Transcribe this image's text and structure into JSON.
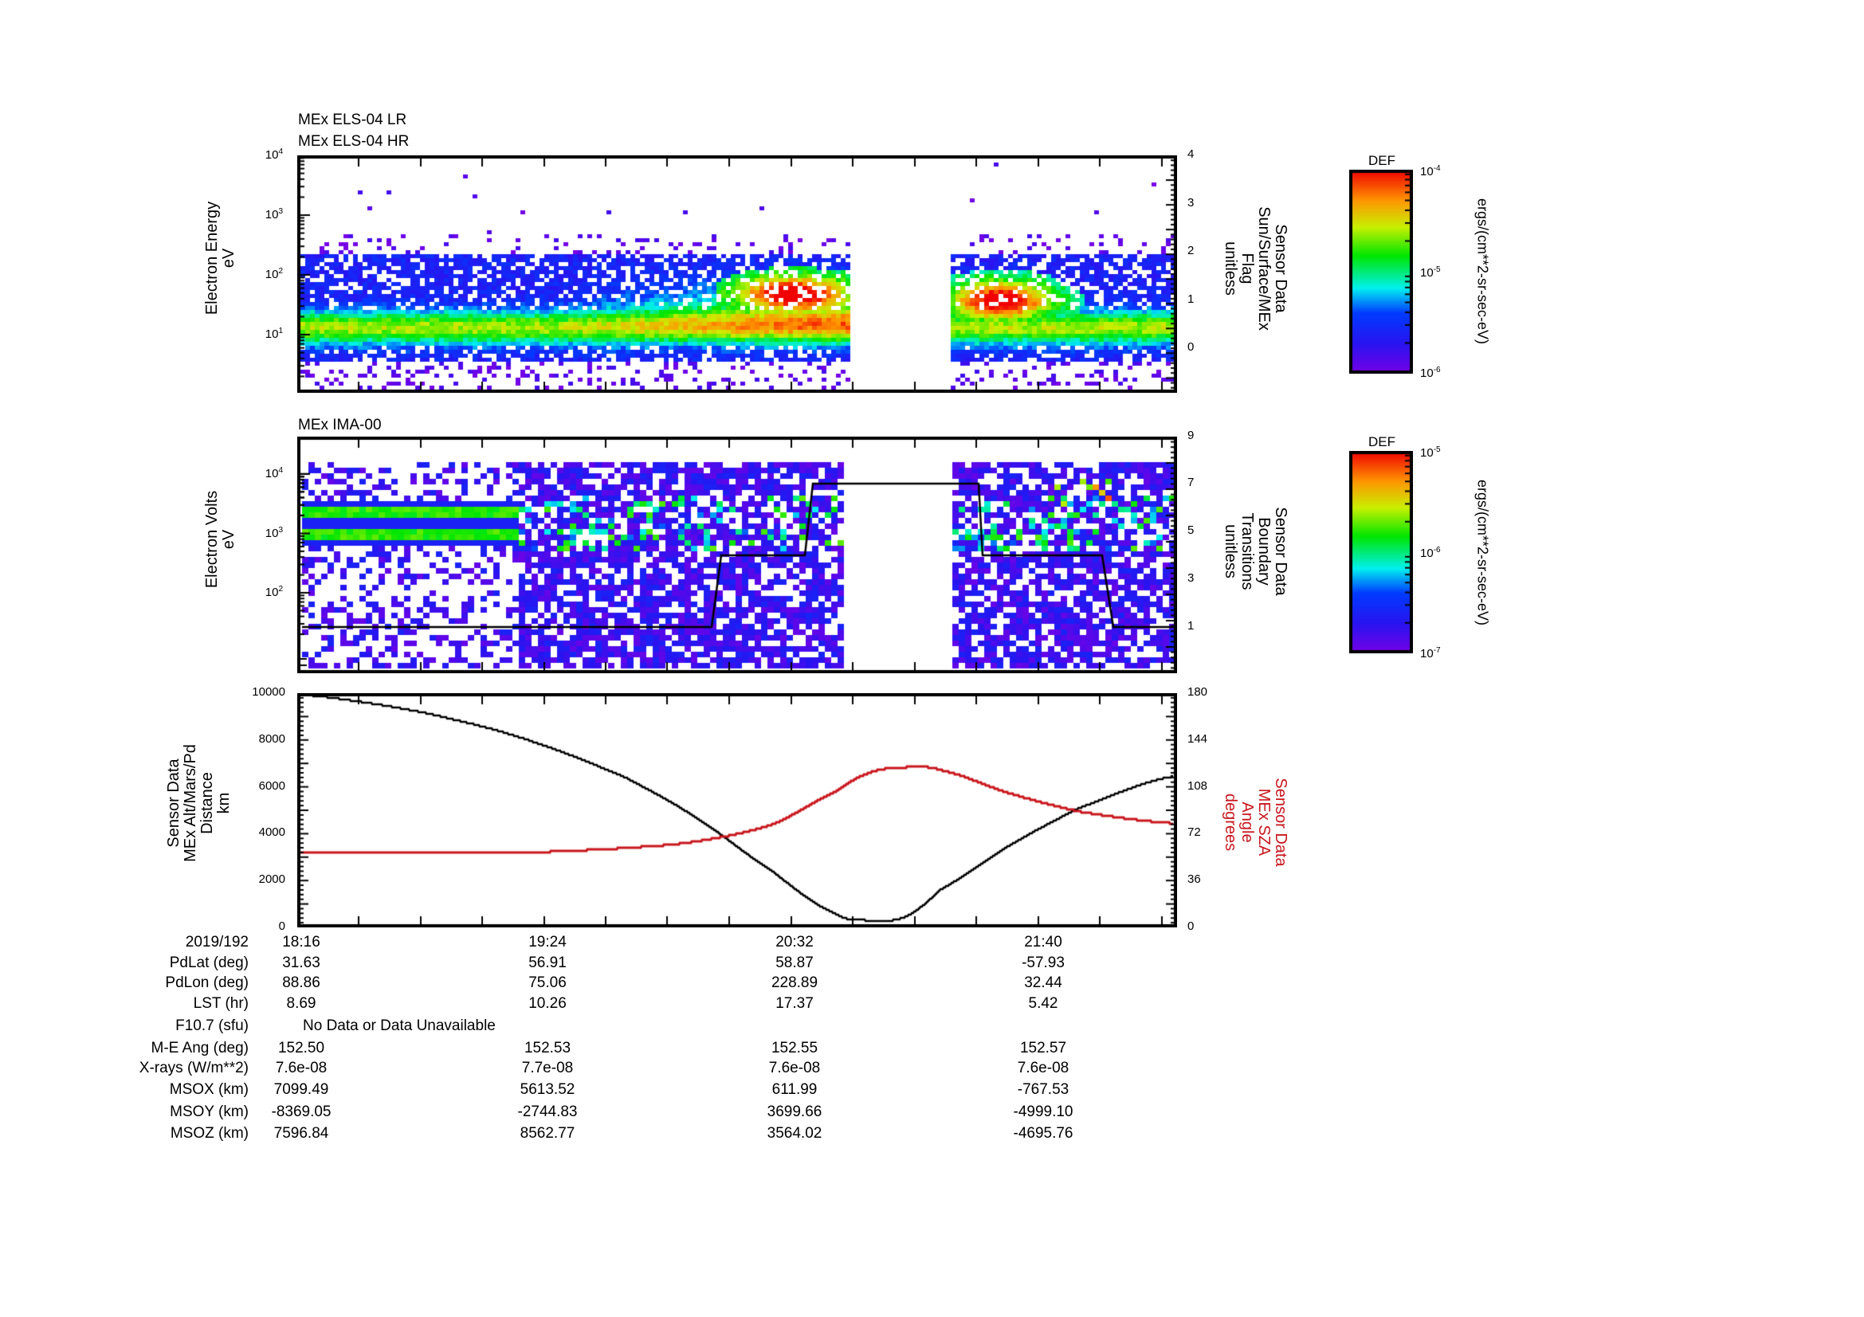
{
  "chart_data": [
    {
      "type": "heatmap",
      "panel": "top",
      "titles": [
        "MEx ELS-04 LR",
        "MEx ELS-04 HR"
      ],
      "ylabel": [
        "Electron Energy",
        "eV"
      ],
      "yscale": "log",
      "ylim": [
        1,
        10000
      ],
      "yticks": [
        "10^1",
        "10^2",
        "10^3",
        "10^4"
      ],
      "y2label": [
        "Sensor Data",
        "Sun/Surface/MEx",
        "Flag",
        "unitless"
      ],
      "y2ticks": [
        0,
        1,
        2,
        3,
        4
      ],
      "data_gap": [
        "~20:49",
        "~21:18"
      ],
      "colorbar": {
        "title": "DEF",
        "min": "10^-6",
        "mid": "10^-5",
        "max": "10^-4",
        "units": "ergs/(cm**2-sr-sec-eV)"
      },
      "features": [
        {
          "desc": "background electron band centred near 10-30 eV (green/cyan) across full interval"
        },
        {
          "desc": "intensification to 10^-4 (red) at 50-100 eV near 20:35-20:40"
        },
        {
          "desc": "intensification (red) at ~40-80 eV near 21:50"
        }
      ]
    },
    {
      "type": "heatmap",
      "panel": "middle",
      "title": "MEx IMA-00",
      "ylabel": [
        "Electron Volts",
        "eV"
      ],
      "yscale": "log",
      "ylim": [
        10,
        30000
      ],
      "yticks": [
        "10^2",
        "10^3",
        "10^4"
      ],
      "y2label": [
        "Sensor Data",
        "Boundary",
        "Transitions",
        "unitless"
      ],
      "y2ticks": [
        1,
        3,
        5,
        7,
        9
      ],
      "data_gap": [
        "~20:47",
        "~21:18"
      ],
      "colorbar": {
        "title": "DEF",
        "min": "10^-7",
        "mid": "10^-6",
        "max": "10^-5",
        "units": "ergs/(cm**2-sr-sec-eV)"
      },
      "boundary_line": {
        "x": [
          "18:16",
          "20:10",
          "20:12",
          "20:36",
          "20:38",
          "21:45",
          "21:47",
          "22:13",
          "22:16",
          "22:27"
        ],
        "y": [
          1,
          1,
          4,
          4,
          7,
          7,
          4,
          4,
          1,
          1
        ]
      },
      "features": [
        {
          "desc": "two steady bands near 1-3 keV (green) from 18:16 to ~19:00"
        }
      ]
    },
    {
      "type": "line",
      "panel": "bottom",
      "ylabel": [
        "Sensor Data",
        "MEx Alt/Mars/Pd",
        "Distance",
        "km"
      ],
      "ylim": [
        0,
        10000
      ],
      "yticks": [
        0,
        2000,
        4000,
        6000,
        8000,
        10000
      ],
      "y2label": [
        "Sensor Data",
        "MEx SZA",
        "Angle",
        "degrees"
      ],
      "y2lim": [
        0,
        180
      ],
      "y2ticks": [
        0,
        36,
        72,
        108,
        144,
        180
      ],
      "x": [
        "18:16",
        "18:40",
        "19:00",
        "19:24",
        "19:50",
        "20:10",
        "20:32",
        "20:50",
        "21:00",
        "21:10",
        "21:20",
        "21:40",
        "22:00",
        "22:27"
      ],
      "series": [
        {
          "name": "MEx Alt/Mars/Pd Distance (km)",
          "color": "#000000",
          "axis": "left",
          "values": [
            9950,
            9500,
            8900,
            7900,
            6400,
            4700,
            2400,
            600,
            300,
            450,
            1600,
            3500,
            5100,
            6450
          ]
        },
        {
          "name": "MEx SZA Angle (degrees)",
          "color": "#c8161d",
          "axis": "right",
          "values": [
            57.6,
            57.3,
            57.3,
            57.8,
            61,
            66,
            79,
            104,
            119,
            123,
            121,
            103,
            89,
            80
          ]
        }
      ]
    }
  ],
  "panel1": {
    "title_lr": "MEx ELS-04 LR",
    "title_hr": "MEx ELS-04 HR",
    "ylabel": [
      "Electron Energy",
      "eV"
    ],
    "y2label": [
      "Sensor Data",
      "Sun/Surface/MEx",
      "Flag",
      "unitless"
    ],
    "yticks": [
      {
        "base": "10",
        "exp": "4"
      },
      {
        "base": "10",
        "exp": "3"
      },
      {
        "base": "10",
        "exp": "2"
      },
      {
        "base": "10",
        "exp": "1"
      }
    ],
    "y2ticks": [
      "4",
      "3",
      "2",
      "1",
      "0"
    ]
  },
  "panel2": {
    "title": "MEx IMA-00",
    "ylabel": [
      "Electron Volts",
      "eV"
    ],
    "y2label": [
      "Sensor Data",
      "Boundary",
      "Transitions",
      "unitless"
    ],
    "yticks": [
      {
        "base": "10",
        "exp": "4"
      },
      {
        "base": "10",
        "exp": "3"
      },
      {
        "base": "10",
        "exp": "2"
      }
    ],
    "y2ticks": [
      "9",
      "7",
      "5",
      "3",
      "1"
    ]
  },
  "panel3": {
    "ylabel": [
      "Sensor Data",
      "MEx Alt/Mars/Pd",
      "Distance",
      "km"
    ],
    "y2label": [
      "Sensor Data",
      "MEx SZA",
      "Angle",
      "degrees"
    ],
    "yticks": [
      "10000",
      "8000",
      "6000",
      "4000",
      "2000",
      "0"
    ],
    "y2ticks": [
      "180",
      "144",
      "108",
      "72",
      "36",
      "0"
    ]
  },
  "colorbar1": {
    "title": "DEF",
    "max": {
      "base": "10",
      "exp": "-4"
    },
    "mid": {
      "base": "10",
      "exp": "-5"
    },
    "min": {
      "base": "10",
      "exp": "-6"
    },
    "units": "ergs/(cm**2-sr-sec-eV)"
  },
  "colorbar2": {
    "title": "DEF",
    "max": {
      "base": "10",
      "exp": "-5"
    },
    "mid": {
      "base": "10",
      "exp": "-6"
    },
    "min": {
      "base": "10",
      "exp": "-7"
    },
    "units": "ergs/(cm**2-sr-sec-eV)"
  },
  "ephemeris": {
    "date": "2019/192",
    "times": [
      "18:16",
      "19:24",
      "20:32",
      "21:40"
    ],
    "rows": [
      {
        "label": "PdLat (deg)",
        "values": [
          "31.63",
          "56.91",
          "58.87",
          "-57.93"
        ]
      },
      {
        "label": "PdLon (deg)",
        "values": [
          "88.86",
          "75.06",
          "228.89",
          "32.44"
        ]
      },
      {
        "label": "LST (hr)",
        "values": [
          "8.69",
          "10.26",
          "17.37",
          "5.42"
        ]
      },
      {
        "label": "F10.7 (sfu)",
        "note": "No Data or Data Unavailable"
      },
      {
        "label": "M-E Ang (deg)",
        "values": [
          "152.50",
          "152.53",
          "152.55",
          "152.57"
        ]
      },
      {
        "label": "X-rays (W/m**2)",
        "values": [
          "7.6e-08",
          "7.7e-08",
          "7.6e-08",
          "7.6e-08"
        ]
      },
      {
        "label": "MSOX (km)",
        "values": [
          "7099.49",
          "5613.52",
          "611.99",
          "-767.53"
        ]
      },
      {
        "label": "MSOY (km)",
        "values": [
          "-8369.05",
          "-2744.83",
          "3699.66",
          "-4999.10"
        ]
      },
      {
        "label": "MSOZ (km)",
        "values": [
          "7596.84",
          "8562.77",
          "3564.02",
          "-4695.76"
        ]
      }
    ]
  },
  "colors": {
    "sza_line": "#c8161d",
    "distance_line": "#000000",
    "axis": "#000000"
  }
}
